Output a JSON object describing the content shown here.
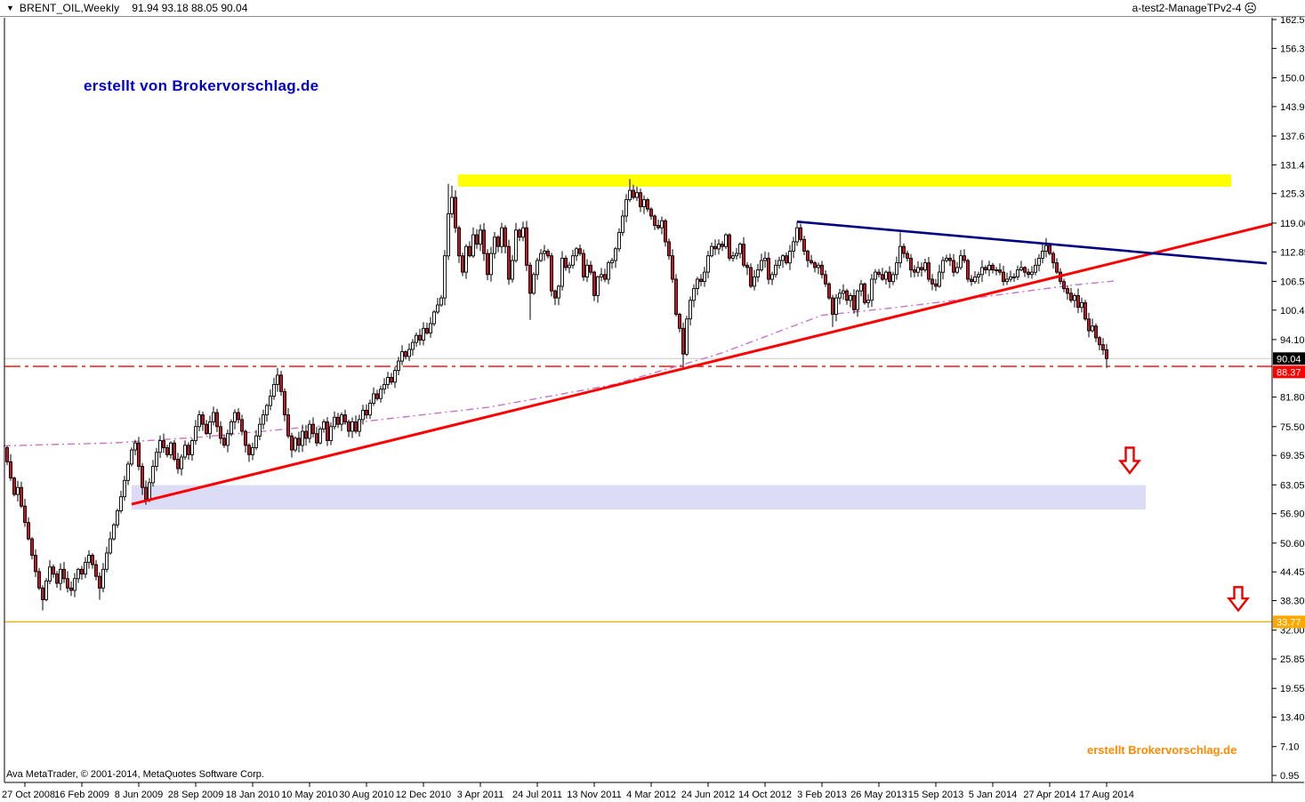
{
  "window": {
    "symbol_period": "BRENT_OIL,Weekly",
    "title_ohlc": "91.94 93.18 88.05 90.04",
    "ea_label": "a-test2-ManageTPv2-4",
    "ea_icon": "sad-face",
    "caret": "▼",
    "face_glyph": "☹",
    "watermark_top": "erstellt von Brokervorschlag.de",
    "watermark_bottom": "erstellt Brokervorschlag.de",
    "copyright": "Ava MetaTrader, © 2001-2014, MetaQuotes Software Corp."
  },
  "colors": {
    "up_candle": "#ffffff",
    "down_candle": "#cc1122",
    "candle_outline": "#000000",
    "ma_line": "#c873c8",
    "red_trendline": "#ff0000",
    "blue_trendline": "#000080",
    "yellow_zone": "#ffff00",
    "support_zone": "#dcdcf7",
    "current_price_line": "#c8c8c8",
    "alert_line": "#ff0000",
    "orange_line": "#ffa800",
    "tag_current_bg": "#000000",
    "tag_alert_bg": "#ff0000",
    "tag_orange_bg": "#ffa800",
    "arrow_stroke": "#ee0000",
    "axis": "#000000",
    "watermark_blue": "#0000ce",
    "watermark_orange": "#ff8a00"
  },
  "chart_data": {
    "type": "candlestick",
    "symbol": "BRENT_OIL",
    "timeframe": "Weekly",
    "title": "BRENT_OIL,Weekly",
    "current_bar": {
      "open": 91.94,
      "high": 93.18,
      "low": 88.05,
      "close": 90.04
    },
    "ylim": [
      0.95,
      162.5
    ],
    "grid": false,
    "y_ticks": [
      "162.50",
      "156.35",
      "150.05",
      "143.90",
      "137.60",
      "131.45",
      "125.30",
      "119.00",
      "112.85",
      "106.55",
      "100.40",
      "94.10",
      "81.80",
      "75.50",
      "69.35",
      "63.05",
      "56.90",
      "50.60",
      "44.45",
      "38.30",
      "32.00",
      "25.85",
      "19.55",
      "13.40",
      "7.10",
      "0.95"
    ],
    "x_ticks": [
      "27 Oct 2008",
      "16 Feb 2009",
      "8 Jun 2009",
      "28 Sep 2009",
      "18 Jan 2010",
      "10 May 2010",
      "30 Aug 2010",
      "12 Dec 2010",
      "3 Apr 2011",
      "24 Jul 2011",
      "13 Nov 2011",
      "4 Mar 2012",
      "24 Jun 2012",
      "14 Oct 2012",
      "3 Feb 2013",
      "26 May 2013",
      "15 Sep 2013",
      "5 Jan 2014",
      "27 Apr 2014",
      "17 Aug 2014"
    ],
    "first_tick_candle_index": 5,
    "candles_per_tick": 16,
    "first_open": 71.0,
    "closes": [
      68.0,
      64.5,
      61.0,
      62.5,
      58.5,
      55.0,
      51.5,
      48.0,
      44.5,
      41.0,
      38.5,
      42.5,
      45.5,
      44.0,
      42.0,
      45.0,
      43.0,
      41.0,
      40.5,
      43.0,
      45.0,
      44.0,
      46.5,
      48.0,
      46.0,
      43.5,
      41.0,
      45.0,
      48.5,
      51.5,
      54.5,
      57.5,
      60.5,
      64.0,
      67.5,
      70.5,
      72.0,
      67.0,
      62.5,
      60.0,
      63.5,
      67.0,
      70.0,
      72.5,
      71.0,
      69.5,
      72.0,
      68.5,
      66.5,
      69.0,
      71.5,
      69.5,
      72.5,
      75.5,
      78.0,
      76.0,
      74.0,
      76.5,
      78.5,
      75.5,
      73.0,
      71.5,
      74.0,
      76.5,
      78.5,
      77.0,
      74.5,
      71.5,
      69.5,
      71.0,
      73.5,
      76.0,
      78.0,
      80.0,
      82.0,
      84.5,
      86.5,
      83.0,
      78.0,
      73.5,
      70.5,
      73.0,
      71.5,
      74.5,
      73.0,
      76.0,
      74.0,
      72.0,
      75.0,
      76.5,
      72.5,
      75.5,
      77.5,
      76.0,
      78.0,
      76.5,
      74.5,
      76.5,
      74.5,
      77.0,
      79.0,
      78.0,
      80.5,
      82.5,
      81.5,
      83.5,
      84.5,
      86.0,
      85.0,
      87.5,
      89.5,
      91.5,
      90.5,
      92.0,
      93.5,
      95.0,
      94.0,
      96.5,
      95.5,
      97.5,
      100.0,
      101.5,
      103.0,
      112.0,
      121.0,
      124.5,
      118.0,
      112.0,
      108.5,
      114.0,
      112.0,
      116.5,
      114.5,
      117.5,
      112.5,
      108.0,
      112.5,
      116.0,
      114.0,
      118.0,
      114.0,
      107.0,
      111.0,
      117.5,
      116.0,
      118.0,
      110.0,
      104.0,
      108.0,
      111.0,
      112.5,
      113.0,
      112.0,
      104.5,
      103.0,
      105.5,
      111.5,
      109.5,
      110.0,
      112.0,
      113.5,
      112.5,
      107.5,
      110.0,
      108.5,
      103.5,
      107.5,
      108.0,
      107.0,
      110.5,
      111.0,
      113.5,
      117.0,
      120.5,
      124.0,
      126.0,
      124.5,
      125.5,
      122.5,
      124.0,
      122.0,
      120.5,
      118.5,
      118.0,
      119.5,
      115.0,
      112.0,
      107.0,
      99.5,
      96.5,
      91.0,
      98.5,
      102.5,
      105.0,
      107.0,
      106.5,
      108.5,
      112.0,
      114.0,
      113.5,
      114.5,
      114.0,
      116.5,
      111.5,
      112.0,
      112.5,
      114.5,
      110.0,
      109.5,
      105.5,
      107.5,
      109.0,
      111.0,
      111.5,
      107.0,
      108.0,
      110.0,
      111.0,
      112.0,
      110.5,
      113.0,
      115.0,
      118.0,
      115.5,
      113.0,
      111.0,
      110.5,
      109.5,
      110.0,
      108.0,
      106.0,
      103.0,
      99.5,
      103.0,
      104.0,
      104.5,
      102.5,
      103.5,
      100.5,
      104.5,
      106.0,
      102.0,
      102.5,
      107.0,
      108.5,
      108.0,
      107.0,
      108.5,
      106.5,
      108.0,
      110.5,
      114.0,
      112.5,
      111.5,
      109.0,
      108.5,
      109.5,
      109.0,
      110.5,
      107.0,
      106.0,
      105.5,
      108.5,
      111.0,
      111.5,
      111.0,
      108.5,
      109.5,
      112.0,
      111.0,
      107.0,
      106.5,
      107.5,
      108.0,
      109.5,
      109.0,
      110.0,
      109.0,
      109.0,
      108.5,
      106.5,
      107.0,
      107.5,
      107.5,
      109.0,
      109.5,
      108.5,
      108.0,
      108.5,
      110.0,
      111.5,
      113.0,
      114.2,
      112.5,
      110.5,
      108.5,
      106.5,
      105.0,
      104.0,
      102.5,
      103.5,
      101.0,
      102.0,
      98.5,
      96.0,
      97.0,
      94.5,
      93.0,
      91.9,
      90.04
    ],
    "overrides": {
      "10": {
        "l": 36.2
      },
      "26": {
        "l": 38.5
      },
      "39": {
        "l": 58.8
      },
      "80": {
        "l": 68.9
      },
      "124": {
        "h": 127.4
      },
      "125": {
        "h": 127.0
      },
      "147": {
        "l": 98.3
      },
      "175": {
        "h": 128.4
      },
      "176": {
        "h": 127.2
      },
      "190": {
        "l": 88.2
      },
      "222": {
        "h": 119.3
      },
      "232": {
        "l": 96.8
      },
      "251": {
        "h": 117.0
      },
      "292": {
        "h": 115.8
      },
      "309": {
        "o": 91.94,
        "h": 93.18,
        "l": 88.05,
        "c": 90.04
      }
    },
    "ma_waypoints": [
      [
        -1,
        71.4
      ],
      [
        30,
        72.0
      ],
      [
        55,
        73.3
      ],
      [
        97,
        76.3
      ],
      [
        135,
        79.6
      ],
      [
        170,
        84.4
      ],
      [
        200,
        91.0
      ],
      [
        229,
        99.3
      ],
      [
        248,
        100.8
      ],
      [
        275,
        103.3
      ],
      [
        300,
        105.8
      ],
      [
        311,
        106.6
      ]
    ],
    "overlays": {
      "zones": [
        {
          "name": "yellow-resistance-zone",
          "from_index": 126.75,
          "to_index": 344,
          "price_top": 129.4,
          "price_bottom": 126.8,
          "color_key": "yellow_zone"
        },
        {
          "name": "support-zone",
          "from_index": 35,
          "to_index": 320,
          "price_top": 63.0,
          "price_bottom": 57.8,
          "color_key": "support_zone"
        }
      ],
      "hlines": [
        {
          "name": "current-price-line",
          "price": 90.04,
          "style": "solid",
          "color_key": "current_price_line",
          "width": 1
        },
        {
          "name": "alert-line",
          "price": 88.37,
          "style": "dashdot",
          "color_key": "alert_line",
          "width": 1.4
        },
        {
          "name": "orange-support-line",
          "price": 33.77,
          "style": "solid",
          "color_key": "orange_line",
          "width": 1.2
        }
      ],
      "trendlines": [
        {
          "name": "red-trendline",
          "x1_index": 35,
          "price1": 58.9,
          "x2_index": 355.5,
          "price2": 118.8,
          "color_key": "red_trendline",
          "width": 3
        },
        {
          "name": "blue-trendline",
          "x1_index": 222,
          "price1": 119.3,
          "x2_index": 354,
          "price2": 110.4,
          "color_key": "blue_trendline",
          "width": 2.6
        }
      ],
      "arrows": [
        {
          "name": "down-arrow-annotation-1",
          "index_center": 315.5,
          "price_top": 71.0,
          "price_tip": 65.6
        },
        {
          "name": "down-arrow-annotation-2",
          "index_center": 346,
          "price_top": 41.2,
          "price_tip": 36.2
        }
      ],
      "price_tags": [
        {
          "name": "price-tag-current",
          "label": "90.04",
          "value": 90.04,
          "bg_key": "tag_current_bg"
        },
        {
          "name": "price-tag-alert",
          "label": "88.37",
          "value": 88.37,
          "bg_key": "tag_alert_bg"
        },
        {
          "name": "price-tag-orange",
          "label": "33.77",
          "value": 33.77,
          "bg_key": "tag_orange_bg"
        }
      ]
    }
  }
}
